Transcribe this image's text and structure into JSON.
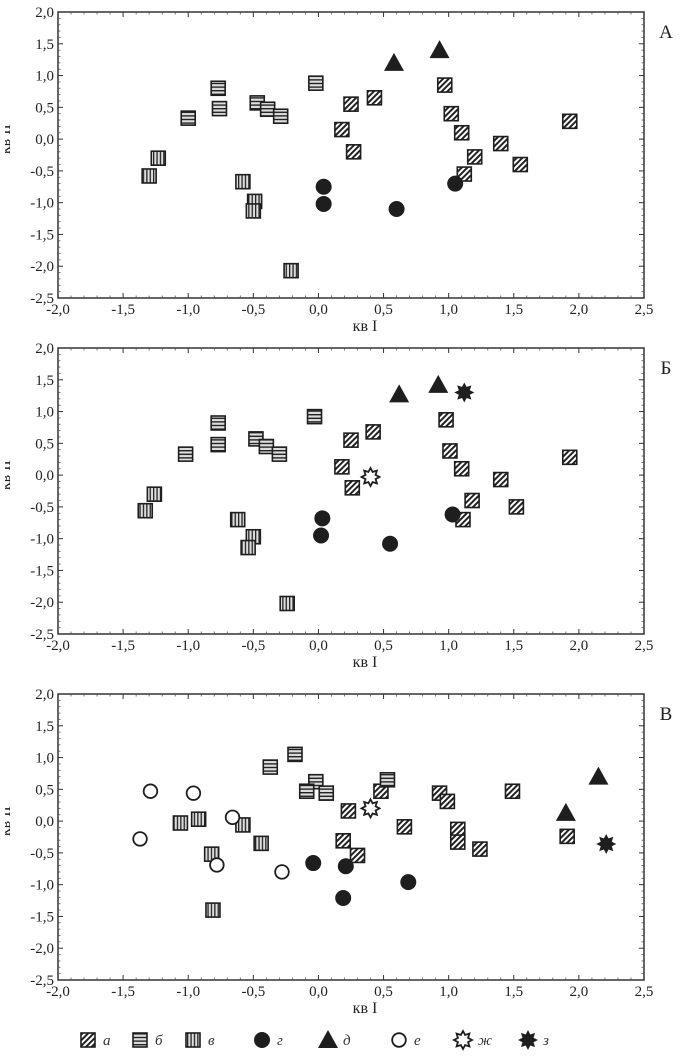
{
  "chart_data": [
    {
      "type": "scatter",
      "panel_label": "А",
      "xlabel": "кв I",
      "ylabel": "кв II",
      "xlim": [
        -2.0,
        2.5
      ],
      "ylim": [
        -2.5,
        2.0
      ],
      "xticks": [
        "-2,0",
        "-1,5",
        "-1,0",
        "-0,5",
        "0,0",
        "0,5",
        "1,0",
        "1,5",
        "2,0",
        "2,5"
      ],
      "yticks": [
        "2,0",
        "1,5",
        "1,0",
        "0,5",
        "0,0",
        "-0,5",
        "-1,0",
        "-1,5",
        "-2,0",
        "-2,5"
      ],
      "series": [
        {
          "name": "а",
          "marker": "diag",
          "points": [
            [
              0.25,
              0.55
            ],
            [
              0.43,
              0.65
            ],
            [
              0.18,
              0.15
            ],
            [
              0.27,
              -0.2
            ],
            [
              0.97,
              0.85
            ],
            [
              1.02,
              0.4
            ],
            [
              1.1,
              0.1
            ],
            [
              1.2,
              -0.28
            ],
            [
              1.12,
              -0.55
            ],
            [
              1.4,
              -0.07
            ],
            [
              1.55,
              -0.4
            ],
            [
              1.93,
              0.28
            ]
          ]
        },
        {
          "name": "б",
          "marker": "horiz",
          "points": [
            [
              -0.77,
              0.8
            ],
            [
              -0.76,
              0.48
            ],
            [
              -1.0,
              0.33
            ],
            [
              -0.47,
              0.57
            ],
            [
              -0.39,
              0.47
            ],
            [
              -0.29,
              0.36
            ],
            [
              -0.02,
              0.88
            ]
          ]
        },
        {
          "name": "в",
          "marker": "vert",
          "points": [
            [
              -1.23,
              -0.3
            ],
            [
              -1.3,
              -0.58
            ],
            [
              -0.58,
              -0.67
            ],
            [
              -0.49,
              -0.98
            ],
            [
              -0.5,
              -1.13
            ],
            [
              -0.21,
              -2.07
            ]
          ]
        },
        {
          "name": "г",
          "marker": "dot",
          "points": [
            [
              0.04,
              -0.75
            ],
            [
              0.04,
              -1.02
            ],
            [
              0.6,
              -1.1
            ],
            [
              1.05,
              -0.7
            ]
          ]
        },
        {
          "name": "д",
          "marker": "triangle",
          "points": [
            [
              0.58,
              1.2
            ],
            [
              0.93,
              1.4
            ]
          ]
        }
      ]
    },
    {
      "type": "scatter",
      "panel_label": "Б",
      "xlabel": "кв I",
      "ylabel": "кв II",
      "xlim": [
        -2.0,
        2.5
      ],
      "ylim": [
        -2.5,
        2.0
      ],
      "xticks": [
        "-2,0",
        "-1,5",
        "-1,0",
        "-0,5",
        "0,0",
        "0,5",
        "1,0",
        "1,5",
        "2,0",
        "2,5"
      ],
      "yticks": [
        "2,0",
        "1,5",
        "1,0",
        "0,5",
        "0,0",
        "-0,5",
        "-1,0",
        "-1,5",
        "-2,0",
        "-2,5"
      ],
      "series": [
        {
          "name": "а",
          "marker": "diag",
          "points": [
            [
              0.25,
              0.55
            ],
            [
              0.42,
              0.68
            ],
            [
              0.18,
              0.13
            ],
            [
              0.26,
              -0.2
            ],
            [
              0.98,
              0.87
            ],
            [
              1.01,
              0.38
            ],
            [
              1.1,
              0.1
            ],
            [
              1.18,
              -0.4
            ],
            [
              1.11,
              -0.7
            ],
            [
              1.4,
              -0.07
            ],
            [
              1.52,
              -0.5
            ],
            [
              1.93,
              0.28
            ]
          ]
        },
        {
          "name": "б",
          "marker": "horiz",
          "points": [
            [
              -0.77,
              0.82
            ],
            [
              -0.77,
              0.48
            ],
            [
              -1.02,
              0.33
            ],
            [
              -0.48,
              0.57
            ],
            [
              -0.4,
              0.45
            ],
            [
              -0.3,
              0.33
            ],
            [
              -0.03,
              0.92
            ]
          ]
        },
        {
          "name": "в",
          "marker": "vert",
          "points": [
            [
              -1.26,
              -0.3
            ],
            [
              -1.33,
              -0.56
            ],
            [
              -0.62,
              -0.7
            ],
            [
              -0.5,
              -0.97
            ],
            [
              -0.54,
              -1.14
            ],
            [
              -0.24,
              -2.02
            ]
          ]
        },
        {
          "name": "г",
          "marker": "dot",
          "points": [
            [
              0.03,
              -0.68
            ],
            [
              0.02,
              -0.95
            ],
            [
              0.55,
              -1.08
            ],
            [
              1.03,
              -0.62
            ]
          ]
        },
        {
          "name": "д",
          "marker": "triangle",
          "points": [
            [
              0.62,
              1.27
            ],
            [
              0.92,
              1.42
            ]
          ]
        },
        {
          "name": "ж",
          "marker": "star-open",
          "points": [
            [
              0.4,
              -0.03
            ]
          ]
        },
        {
          "name": "з",
          "marker": "star-filled",
          "points": [
            [
              1.12,
              1.3
            ]
          ]
        }
      ]
    },
    {
      "type": "scatter",
      "panel_label": "В",
      "xlabel": "кв I",
      "ylabel": "кв II",
      "xlim": [
        -2.0,
        2.5
      ],
      "ylim": [
        -2.5,
        2.0
      ],
      "xticks": [
        "-2,0",
        "-1,5",
        "-1,0",
        "-0,5",
        "0,0",
        "0,5",
        "1,0",
        "1,5",
        "2,0",
        "2,5"
      ],
      "yticks": [
        "2,0",
        "1,5",
        "1,0",
        "0,5",
        "0,0",
        "-0,5",
        "-1,0",
        "-1,5",
        "-2,0",
        "-2,5"
      ],
      "series": [
        {
          "name": "а",
          "marker": "diag",
          "points": [
            [
              0.48,
              0.47
            ],
            [
              0.23,
              0.16
            ],
            [
              0.19,
              -0.31
            ],
            [
              0.3,
              -0.54
            ],
            [
              0.66,
              -0.09
            ],
            [
              0.93,
              0.44
            ],
            [
              0.99,
              0.31
            ],
            [
              1.07,
              -0.13
            ],
            [
              1.07,
              -0.33
            ],
            [
              1.24,
              -0.44
            ],
            [
              1.49,
              0.47
            ],
            [
              1.91,
              -0.24
            ]
          ]
        },
        {
          "name": "б",
          "marker": "horiz",
          "points": [
            [
              -0.18,
              1.05
            ],
            [
              -0.37,
              0.85
            ],
            [
              -0.02,
              0.62
            ],
            [
              -0.09,
              0.47
            ],
            [
              0.06,
              0.44
            ],
            [
              0.53,
              0.65
            ]
          ]
        },
        {
          "name": "в",
          "marker": "vert",
          "points": [
            [
              -1.06,
              -0.03
            ],
            [
              -0.92,
              0.03
            ],
            [
              -0.58,
              -0.06
            ],
            [
              -0.44,
              -0.35
            ],
            [
              -0.82,
              -0.52
            ],
            [
              -0.81,
              -1.4
            ]
          ]
        },
        {
          "name": "г",
          "marker": "dot",
          "points": [
            [
              -0.04,
              -0.66
            ],
            [
              0.21,
              -0.71
            ],
            [
              0.19,
              -1.21
            ],
            [
              0.69,
              -0.96
            ]
          ]
        },
        {
          "name": "д",
          "marker": "triangle",
          "points": [
            [
              2.15,
              0.7
            ],
            [
              1.9,
              0.13
            ]
          ]
        },
        {
          "name": "е",
          "marker": "circle-open",
          "points": [
            [
              -1.29,
              0.47
            ],
            [
              -0.96,
              0.44
            ],
            [
              -0.66,
              0.06
            ],
            [
              -1.37,
              -0.28
            ],
            [
              -0.78,
              -0.69
            ],
            [
              -0.28,
              -0.8
            ]
          ]
        },
        {
          "name": "ж",
          "marker": "star-open",
          "points": [
            [
              0.4,
              0.2
            ]
          ]
        },
        {
          "name": "з",
          "marker": "star-filled",
          "points": [
            [
              2.21,
              -0.36
            ]
          ]
        }
      ]
    }
  ],
  "legend": [
    {
      "label": "а",
      "marker": "diag"
    },
    {
      "label": "б",
      "marker": "horiz"
    },
    {
      "label": "в",
      "marker": "vert"
    },
    {
      "label": "г",
      "marker": "dot"
    },
    {
      "label": "д",
      "marker": "triangle"
    },
    {
      "label": "е",
      "marker": "circle-open"
    },
    {
      "label": "ж",
      "marker": "star-open"
    },
    {
      "label": "з",
      "marker": "star-filled"
    }
  ],
  "colors": {
    "ink": "#1e1e1e",
    "axis": "#333333"
  }
}
